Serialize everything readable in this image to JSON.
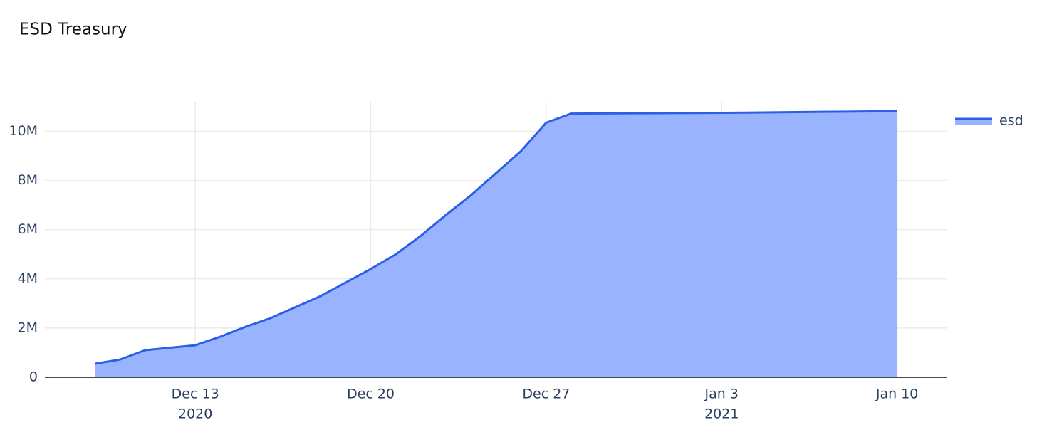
{
  "chart_data": {
    "type": "area",
    "title": "ESD Treasury",
    "x": [
      "2020-12-09",
      "2020-12-10",
      "2020-12-11",
      "2020-12-12",
      "2020-12-13",
      "2020-12-14",
      "2020-12-15",
      "2020-12-16",
      "2020-12-17",
      "2020-12-18",
      "2020-12-19",
      "2020-12-20",
      "2020-12-21",
      "2020-12-22",
      "2020-12-23",
      "2020-12-24",
      "2020-12-25",
      "2020-12-26",
      "2020-12-27",
      "2020-12-28",
      "2020-12-29",
      "2020-12-30",
      "2020-12-31",
      "2021-01-01",
      "2021-01-02",
      "2021-01-03",
      "2021-01-04",
      "2021-01-05",
      "2021-01-06",
      "2021-01-07",
      "2021-01-08",
      "2021-01-09",
      "2021-01-10"
    ],
    "series": [
      {
        "name": "esd",
        "color": "#2b5fe6",
        "fill": "#99b3ff",
        "values": [
          550000,
          720000,
          1100000,
          1200000,
          1300000,
          1650000,
          2050000,
          2400000,
          2850000,
          3300000,
          3850000,
          4400000,
          5000000,
          5750000,
          6600000,
          7400000,
          8300000,
          9200000,
          10350000,
          10720000,
          10725000,
          10730000,
          10735000,
          10740000,
          10745000,
          10750000,
          10760000,
          10770000,
          10780000,
          10790000,
          10800000,
          10810000,
          10820000
        ]
      }
    ],
    "xlim": [
      "2020-12-07",
      "2021-01-12"
    ],
    "xticks": [
      {
        "value": "2020-12-13",
        "label": "Dec 13",
        "year": "2020"
      },
      {
        "value": "2020-12-20",
        "label": "Dec 20"
      },
      {
        "value": "2020-12-27",
        "label": "Dec 27"
      },
      {
        "value": "2021-01-03",
        "label": "Jan 3",
        "year": "2021"
      },
      {
        "value": "2021-01-10",
        "label": "Jan 10"
      }
    ],
    "ylim": [
      0,
      11200000
    ],
    "yticks": [
      0,
      {
        "value": 2000000,
        "label": "2M"
      },
      {
        "value": 4000000,
        "label": "4M"
      },
      {
        "value": 6000000,
        "label": "6M"
      },
      {
        "value": 8000000,
        "label": "8M"
      },
      {
        "value": 10000000,
        "label": "10M"
      }
    ],
    "grid": true,
    "legend": "top-right"
  }
}
